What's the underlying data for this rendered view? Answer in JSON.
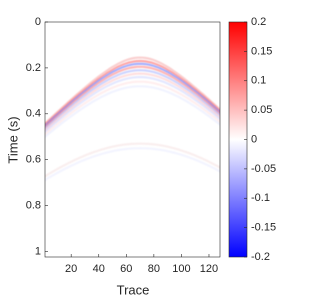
{
  "chart_data": {
    "type": "heatmap",
    "xlabel": "Trace",
    "ylabel": "Time (s)",
    "xlim": [
      1,
      128
    ],
    "ylim": [
      0,
      1.024
    ],
    "y_reversed": true,
    "xticks": [
      20,
      40,
      60,
      80,
      100,
      120
    ],
    "yticks": [
      0,
      0.2,
      0.4,
      0.6,
      0.8,
      1
    ],
    "colorbar": {
      "lim": [
        -0.2,
        0.2
      ],
      "ticks": [
        0.2,
        0.15,
        0.1,
        0.05,
        0,
        -0.05,
        -0.1,
        -0.15,
        -0.2
      ],
      "colors": [
        "#0000ff",
        "#ffffff",
        "#ff0000"
      ]
    }
  }
}
